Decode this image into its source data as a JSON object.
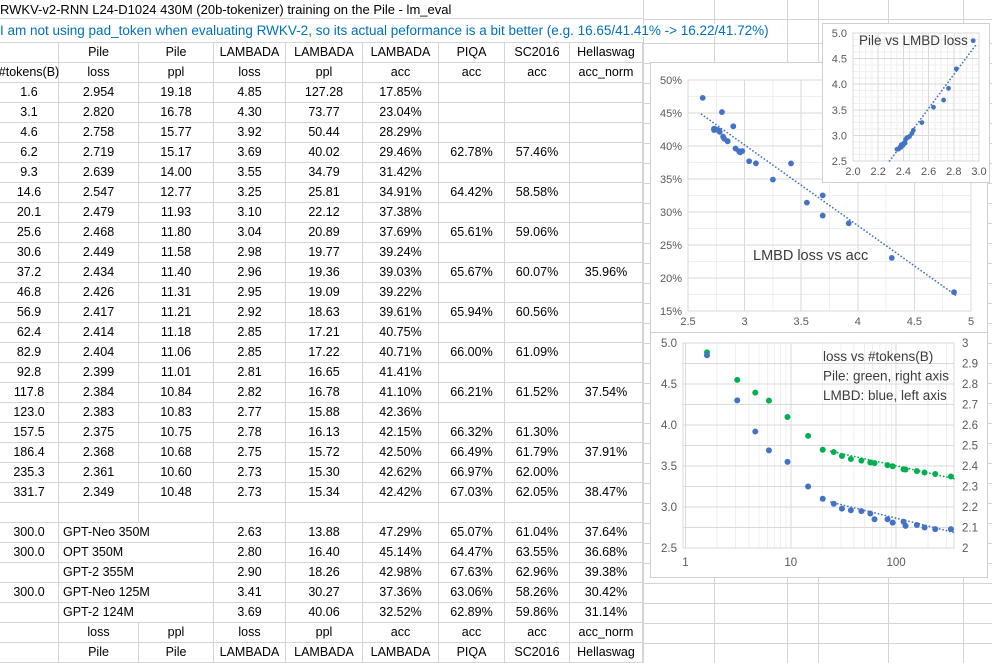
{
  "title": "RWKV-v2-RNN L24-D1024 430M (20b-tokenizer) training on the Pile - lm_eval",
  "subtitle": "I am not using pad_token when evaluating RWKV-2, so its actual peformance is a bit better (e.g. 16.65/41.41% -> 16.22/41.72%)",
  "colors": {
    "subtitle_blue": "#0070C0",
    "marker_blue": "#4472C4",
    "marker_green": "#00B050",
    "gridline": "#D4D4D4",
    "chart_border": "#CFCFCF",
    "chart_grid_major": "#DADADA",
    "chart_grid_minor": "#EFEFEF",
    "axis_label_gray": "#595959",
    "chart_text": "#3B3B3B"
  },
  "table": {
    "header_groups": [
      "",
      "Pile",
      "Pile",
      "LAMBADA",
      "LAMBADA",
      "LAMBADA",
      "PIQA",
      "SC2016",
      "Hellaswag"
    ],
    "header_metrics": [
      "#tokens(B)",
      "loss",
      "ppl",
      "loss",
      "ppl",
      "acc",
      "acc",
      "acc",
      "acc_norm"
    ],
    "rows": [
      [
        "1.6",
        "2.954",
        "19.18",
        "4.85",
        "127.28",
        "17.85%",
        "",
        "",
        ""
      ],
      [
        "3.1",
        "2.820",
        "16.78",
        "4.30",
        "73.77",
        "23.04%",
        "",
        "",
        ""
      ],
      [
        "4.6",
        "2.758",
        "15.77",
        "3.92",
        "50.44",
        "28.29%",
        "",
        "",
        ""
      ],
      [
        "6.2",
        "2.719",
        "15.17",
        "3.69",
        "40.02",
        "29.46%",
        "62.78%",
        "57.46%",
        ""
      ],
      [
        "9.3",
        "2.639",
        "14.00",
        "3.55",
        "34.79",
        "31.42%",
        "",
        "",
        ""
      ],
      [
        "14.6",
        "2.547",
        "12.77",
        "3.25",
        "25.81",
        "34.91%",
        "64.42%",
        "58.58%",
        ""
      ],
      [
        "20.1",
        "2.479",
        "11.93",
        "3.10",
        "22.12",
        "37.38%",
        "",
        "",
        ""
      ],
      [
        "25.6",
        "2.468",
        "11.80",
        "3.04",
        "20.89",
        "37.69%",
        "65.61%",
        "59.06%",
        ""
      ],
      [
        "30.6",
        "2.449",
        "11.58",
        "2.98",
        "19.77",
        "39.24%",
        "",
        "",
        ""
      ],
      [
        "37.2",
        "2.434",
        "11.40",
        "2.96",
        "19.36",
        "39.03%",
        "65.67%",
        "60.07%",
        "35.96%"
      ],
      [
        "46.8",
        "2.426",
        "11.31",
        "2.95",
        "19.09",
        "39.22%",
        "",
        "",
        ""
      ],
      [
        "56.9",
        "2.417",
        "11.21",
        "2.92",
        "18.63",
        "39.61%",
        "65.94%",
        "60.56%",
        ""
      ],
      [
        "62.4",
        "2.414",
        "11.18",
        "2.85",
        "17.21",
        "40.75%",
        "",
        "",
        ""
      ],
      [
        "82.9",
        "2.404",
        "11.06",
        "2.85",
        "17.22",
        "40.71%",
        "66.00%",
        "61.09%",
        ""
      ],
      [
        "92.8",
        "2.399",
        "11.01",
        "2.81",
        "16.65",
        "41.41%",
        "",
        "",
        ""
      ],
      [
        "117.8",
        "2.384",
        "10.84",
        "2.82",
        "16.78",
        "41.10%",
        "66.21%",
        "61.52%",
        "37.54%"
      ],
      [
        "123.0",
        "2.383",
        "10.83",
        "2.77",
        "15.88",
        "42.36%",
        "",
        "",
        ""
      ],
      [
        "157.5",
        "2.375",
        "10.75",
        "2.78",
        "16.13",
        "42.15%",
        "66.32%",
        "61.30%",
        ""
      ],
      [
        "186.4",
        "2.368",
        "10.68",
        "2.75",
        "15.72",
        "42.50%",
        "66.49%",
        "61.79%",
        "37.91%"
      ],
      [
        "235.3",
        "2.361",
        "10.60",
        "2.73",
        "15.30",
        "42.62%",
        "66.97%",
        "62.00%",
        ""
      ],
      [
        "331.7",
        "2.349",
        "10.48",
        "2.73",
        "15.34",
        "42.42%",
        "67.03%",
        "62.05%",
        "38.47%"
      ]
    ],
    "comparison_rows": [
      [
        "300.0",
        "GPT-Neo 350M",
        "2.63",
        "13.88",
        "47.29%",
        "65.07%",
        "61.04%",
        "37.64%"
      ],
      [
        "300.0",
        "OPT 350M",
        "2.80",
        "16.40",
        "45.14%",
        "64.47%",
        "63.55%",
        "36.68%"
      ],
      [
        "",
        "GPT-2 355M",
        "2.90",
        "18.26",
        "42.98%",
        "67.63%",
        "62.96%",
        "39.38%"
      ],
      [
        "300.0",
        "GPT-Neo 125M",
        "3.41",
        "30.27",
        "37.36%",
        "63.06%",
        "58.26%",
        "30.42%"
      ],
      [
        "",
        "GPT-2 124M",
        "3.69",
        "40.06",
        "32.52%",
        "62.89%",
        "59.86%",
        "31.14%"
      ]
    ],
    "footer_metrics": [
      "",
      "loss",
      "ppl",
      "loss",
      "ppl",
      "acc",
      "acc",
      "acc",
      "acc_norm"
    ],
    "footer_groups": [
      "",
      "Pile",
      "Pile",
      "LAMBADA",
      "LAMBADA",
      "LAMBADA",
      "PIQA",
      "SC2016",
      "Hellaswag"
    ]
  },
  "chart_data": [
    {
      "type": "scatter",
      "title": "Pile vs LMBD loss",
      "x_name": "Pile loss",
      "y_name": "LAMBADA loss",
      "xlim": [
        2.0,
        3.0
      ],
      "ylim": [
        2.5,
        5.0
      ],
      "xticks": [
        2.0,
        2.2,
        2.4,
        2.6,
        2.8,
        3.0
      ],
      "xtick_labels": [
        "2.0",
        "2.2",
        "2.4",
        "2.6",
        "2.8",
        "3.0"
      ],
      "yticks": [
        2.5,
        3.0,
        3.5,
        4.0,
        4.5,
        5.0
      ],
      "ytick_labels": [
        "2.5",
        "3.0",
        "3.5",
        "4.0",
        "4.5",
        "5.0"
      ],
      "marker_color": "#4472C4",
      "points": [
        [
          2.954,
          4.85
        ],
        [
          2.82,
          4.3
        ],
        [
          2.758,
          3.92
        ],
        [
          2.719,
          3.69
        ],
        [
          2.639,
          3.55
        ],
        [
          2.547,
          3.25
        ],
        [
          2.479,
          3.1
        ],
        [
          2.468,
          3.04
        ],
        [
          2.449,
          2.98
        ],
        [
          2.434,
          2.96
        ],
        [
          2.426,
          2.95
        ],
        [
          2.417,
          2.92
        ],
        [
          2.414,
          2.85
        ],
        [
          2.404,
          2.85
        ],
        [
          2.399,
          2.81
        ],
        [
          2.384,
          2.82
        ],
        [
          2.383,
          2.77
        ],
        [
          2.375,
          2.78
        ],
        [
          2.368,
          2.75
        ],
        [
          2.361,
          2.73
        ],
        [
          2.349,
          2.73
        ]
      ],
      "trend": [
        [
          2.29,
          2.5
        ],
        [
          2.97,
          4.75
        ]
      ],
      "grid": true,
      "legend": "none"
    },
    {
      "type": "scatter",
      "title": "LMBD loss vs acc",
      "x_name": "LAMBADA loss",
      "y_name": "LAMBADA acc",
      "xlim": [
        2.5,
        5.0
      ],
      "ylim": [
        0.15,
        0.5
      ],
      "xticks": [
        2.5,
        3.0,
        3.5,
        4.0,
        4.5,
        5.0
      ],
      "xtick_labels": [
        "2.5",
        "3",
        "3.5",
        "4",
        "4.5",
        "5"
      ],
      "yticks": [
        0.15,
        0.2,
        0.25,
        0.3,
        0.35,
        0.4,
        0.45,
        0.5
      ],
      "ytick_labels": [
        "15%",
        "20%",
        "25%",
        "30%",
        "35%",
        "40%",
        "45%",
        "50%"
      ],
      "marker_color": "#4472C4",
      "points": [
        [
          4.85,
          0.1785
        ],
        [
          4.3,
          0.2304
        ],
        [
          3.92,
          0.2829
        ],
        [
          3.69,
          0.2946
        ],
        [
          3.55,
          0.3142
        ],
        [
          3.25,
          0.3491
        ],
        [
          3.1,
          0.3738
        ],
        [
          3.04,
          0.3769
        ],
        [
          2.98,
          0.3924
        ],
        [
          2.96,
          0.3903
        ],
        [
          2.95,
          0.3922
        ],
        [
          2.92,
          0.3961
        ],
        [
          2.85,
          0.4075
        ],
        [
          2.85,
          0.4071
        ],
        [
          2.81,
          0.4141
        ],
        [
          2.82,
          0.411
        ],
        [
          2.77,
          0.4236
        ],
        [
          2.78,
          0.4215
        ],
        [
          2.75,
          0.425
        ],
        [
          2.73,
          0.4262
        ],
        [
          2.73,
          0.4242
        ],
        [
          2.63,
          0.4729
        ],
        [
          2.8,
          0.4514
        ],
        [
          2.9,
          0.4298
        ],
        [
          3.41,
          0.3736
        ],
        [
          3.69,
          0.3252
        ]
      ],
      "trend": [
        [
          2.62,
          0.448
        ],
        [
          4.88,
          0.172
        ]
      ],
      "grid": true,
      "legend": "none"
    },
    {
      "type": "scatter",
      "x_scale": "log",
      "title": "loss vs #tokens(B)",
      "annotation_lines": [
        "loss vs #tokens(B)",
        "Pile: green, right axis",
        "LMBD: blue, left axis"
      ],
      "xlim": [
        1,
        355
      ],
      "xticks": [
        1,
        10,
        100
      ],
      "xtick_labels": [
        "1",
        "10",
        "100"
      ],
      "ylim_left": [
        2.5,
        5.0
      ],
      "yticks_left": [
        5.0,
        4.5,
        4.0,
        3.5,
        3.0,
        2.5
      ],
      "ytick_labels_left": [
        "5.0",
        "4.5",
        "4.0",
        "3.5",
        "3.0",
        "2.5"
      ],
      "ylim_right": [
        2,
        3
      ],
      "yticks_right": [
        3,
        2.9,
        2.8,
        2.7,
        2.6,
        2.5,
        2.4,
        2.3,
        2.2,
        2.1,
        2
      ],
      "ytick_labels_right": [
        "3",
        "2.9",
        "2.8",
        "2.7",
        "2.6",
        "2.5",
        "2.4",
        "2.3",
        "2.2",
        "2.1",
        "2"
      ],
      "x": [
        1.6,
        3.1,
        4.6,
        6.2,
        9.3,
        14.6,
        20.1,
        25.6,
        30.6,
        37.2,
        46.8,
        56.9,
        62.4,
        82.9,
        92.8,
        117.8,
        123.0,
        157.5,
        186.4,
        235.3,
        331.7
      ],
      "series": [
        {
          "name": "Pile loss",
          "axis": "right",
          "color": "#00B050",
          "values": [
            2.954,
            2.82,
            2.758,
            2.719,
            2.639,
            2.547,
            2.479,
            2.468,
            2.449,
            2.434,
            2.426,
            2.417,
            2.414,
            2.404,
            2.399,
            2.384,
            2.383,
            2.375,
            2.368,
            2.361,
            2.349
          ],
          "trend": [
            [
              24,
              2.472
            ],
            [
              355,
              2.338
            ]
          ]
        },
        {
          "name": "LMBD loss",
          "axis": "left",
          "color": "#4472C4",
          "values": [
            4.85,
            4.3,
            3.92,
            3.69,
            3.55,
            3.25,
            3.1,
            3.04,
            2.98,
            2.96,
            2.95,
            2.92,
            2.85,
            2.85,
            2.81,
            2.82,
            2.77,
            2.78,
            2.75,
            2.73,
            2.73
          ],
          "trend": [
            [
              24,
              3.06
            ],
            [
              355,
              2.69
            ]
          ]
        }
      ],
      "grid": true,
      "legend": "in-plot text"
    }
  ]
}
